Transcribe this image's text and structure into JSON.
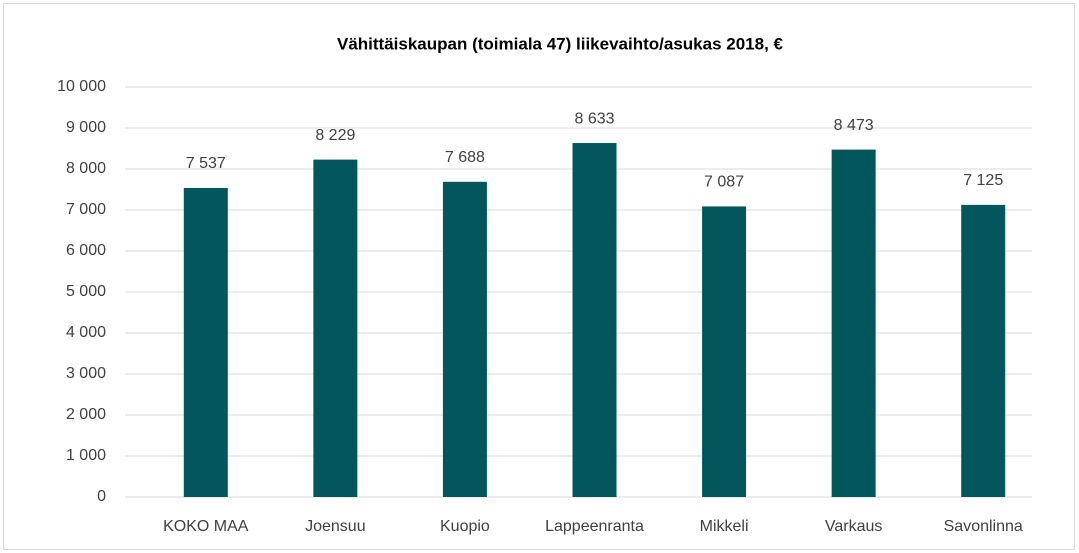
{
  "chart_data": {
    "type": "bar",
    "title": "Vähittäiskaupan  (toimiala 47) liikevaihto/asukas 2018, €",
    "categories": [
      "KOKO MAA",
      "Joensuu",
      "Kuopio",
      "Lappeenranta",
      "Mikkeli",
      "Varkaus",
      "Savonlinna"
    ],
    "values": [
      7537,
      8229,
      7688,
      8633,
      7087,
      8473,
      7125
    ],
    "value_labels": [
      "7 537",
      "8 229",
      "7 688",
      "8 633",
      "7 087",
      "8 473",
      "7 125"
    ],
    "color": "#02565c",
    "ylim": [
      0,
      10000
    ],
    "yticks": [
      0,
      {
        "value": 1000,
        "label": "1 000"
      },
      {
        "value": 2000,
        "label": "2 000"
      },
      {
        "value": 3000,
        "label": "3 000"
      },
      {
        "value": 4000,
        "label": "4 000"
      },
      {
        "value": 5000,
        "label": "5 000"
      },
      {
        "value": 6000,
        "label": "6 000"
      },
      {
        "value": 7000,
        "label": "7 000"
      },
      {
        "value": 8000,
        "label": "8 000"
      },
      {
        "value": 9000,
        "label": "9 000"
      },
      {
        "value": 10000,
        "label": "10 000"
      }
    ],
    "grid": true
  }
}
